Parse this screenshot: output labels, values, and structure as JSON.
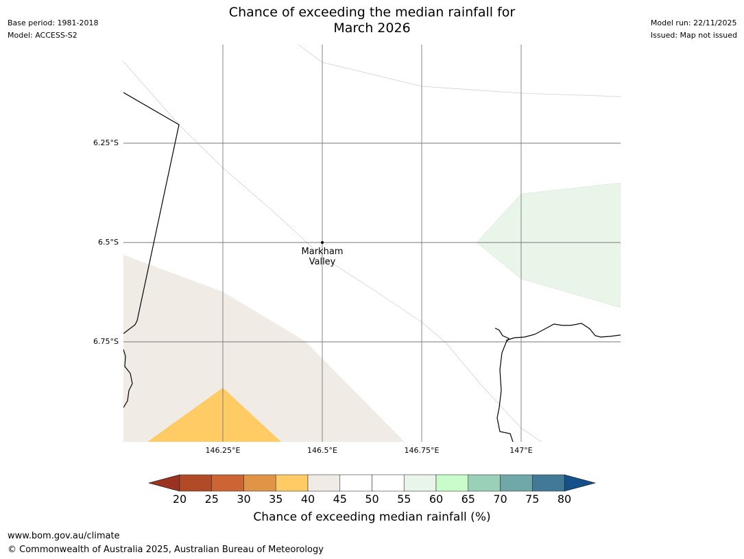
{
  "title_line1": "Chance of exceeding the median rainfall for",
  "title_line2": "March 2026",
  "meta_left": [
    "Base period: 1981-2018",
    "Model: ACCESS-S2"
  ],
  "meta_right": [
    "Model run: 22/11/2025",
    "Issued: Map not issued"
  ],
  "latitude_labels": [
    "6.25°S",
    "6.5°S",
    "6.75°S"
  ],
  "longitude_labels": [
    "146.25°E",
    "146.5°E",
    "146.75°E",
    "147°E"
  ],
  "place": {
    "name_line1": "Markham",
    "name_line2": "Valley"
  },
  "colorbar": {
    "label": "Chance of exceeding median rainfall (%)",
    "ticks": [
      "20",
      "25",
      "30",
      "35",
      "40",
      "45",
      "50",
      "55",
      "60",
      "65",
      "70",
      "75",
      "80"
    ],
    "under_color": "#9b3322",
    "over_color": "#15508a",
    "colors": [
      "#b04a27",
      "#cc6433",
      "#e09446",
      "#fecb65",
      "#f0ebe5",
      "#ffffff",
      "#ffffff",
      "#eaf5ea",
      "#c8fcca",
      "#9ad0b8",
      "#70a7a8",
      "#427997"
    ]
  },
  "footer": {
    "url": "www.bom.gov.au/climate",
    "copyright": "© Commonwealth of Australia 2025, Australian Bureau of Meteorology"
  }
}
